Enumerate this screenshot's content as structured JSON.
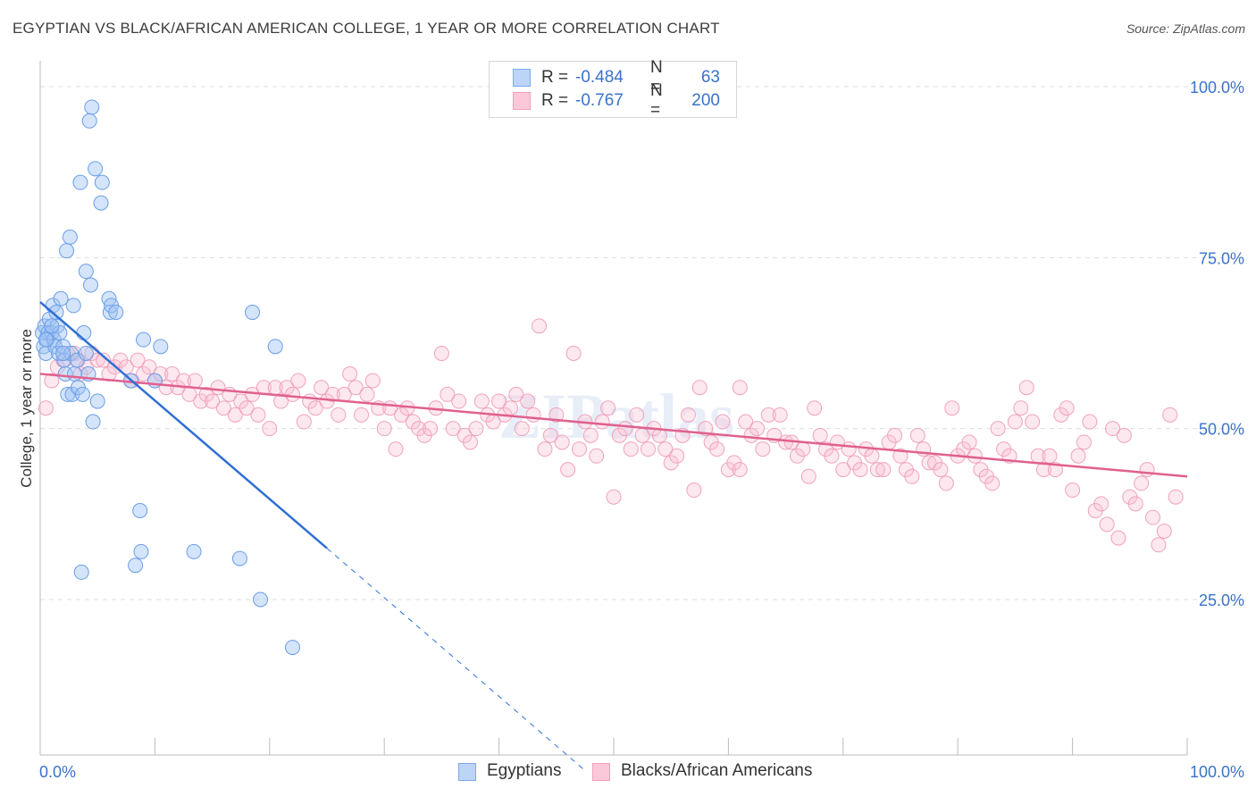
{
  "title": "EGYPTIAN VS BLACK/AFRICAN AMERICAN COLLEGE, 1 YEAR OR MORE CORRELATION CHART",
  "source": "Source: ZipAtlas.com",
  "watermark": "ZIPatlas",
  "legend": {
    "rows": [
      {
        "r_label": "R =",
        "r_value": "-0.484",
        "n_label": "N =",
        "n_value": "63"
      },
      {
        "r_label": "R =",
        "r_value": "-0.767",
        "n_label": "N =",
        "n_value": "200"
      }
    ]
  },
  "bottom_legend": [
    "Egyptians",
    "Blacks/African Americans"
  ],
  "chart_data": {
    "type": "scatter",
    "xlabel": "",
    "ylabel": "College, 1 year or more",
    "xlim": [
      0,
      100
    ],
    "ylim": [
      0,
      105
    ],
    "x_tick_labels": [
      "0.0%",
      "100.0%"
    ],
    "y_tick_labels": [
      {
        "value": 100,
        "label": "100.0%"
      },
      {
        "value": 75,
        "label": "75.0%"
      },
      {
        "value": 50,
        "label": "50.0%"
      },
      {
        "value": 25,
        "label": "25.0%"
      }
    ],
    "grid": true,
    "legend_position": "top-center",
    "colors": {
      "egyptians": "#7aaaf0",
      "blacks": "#f2a0bb",
      "egyptians_line": "#2f6fd4",
      "blacks_line": "#e0608e"
    },
    "series": [
      {
        "name": "Egyptians",
        "points": [
          [
            0.2,
            64
          ],
          [
            0.3,
            62
          ],
          [
            0.4,
            65
          ],
          [
            0.5,
            61
          ],
          [
            0.6,
            63
          ],
          [
            0.7,
            64
          ],
          [
            0.8,
            66
          ],
          [
            1,
            64
          ],
          [
            1.1,
            68
          ],
          [
            1.2,
            63
          ],
          [
            1.3,
            62
          ],
          [
            1.4,
            67
          ],
          [
            1.5,
            65
          ],
          [
            1.6,
            61
          ],
          [
            1.7,
            64
          ],
          [
            1.8,
            69
          ],
          [
            2,
            62
          ],
          [
            2.1,
            60
          ],
          [
            2.2,
            58
          ],
          [
            2.3,
            76
          ],
          [
            2.4,
            55
          ],
          [
            2.6,
            78
          ],
          [
            2.7,
            61
          ],
          [
            2.8,
            55
          ],
          [
            2.9,
            68
          ],
          [
            3,
            58
          ],
          [
            3.2,
            60
          ],
          [
            3.3,
            56
          ],
          [
            3.5,
            86
          ],
          [
            3.6,
            29
          ],
          [
            3.7,
            55
          ],
          [
            3.8,
            64
          ],
          [
            4,
            73
          ],
          [
            4,
            61
          ],
          [
            4.2,
            58
          ],
          [
            4.3,
            95
          ],
          [
            4.4,
            71
          ],
          [
            4.5,
            97
          ],
          [
            4.6,
            51
          ],
          [
            4.8,
            88
          ],
          [
            5,
            54
          ],
          [
            5.3,
            83
          ],
          [
            5.4,
            86
          ],
          [
            6,
            69
          ],
          [
            6.1,
            67
          ],
          [
            6.2,
            68
          ],
          [
            6.6,
            67
          ],
          [
            7.9,
            57
          ],
          [
            8.3,
            30
          ],
          [
            8.7,
            38
          ],
          [
            8.8,
            32
          ],
          [
            9,
            63
          ],
          [
            10,
            57
          ],
          [
            10.5,
            62
          ],
          [
            13.4,
            32
          ],
          [
            17.4,
            31
          ],
          [
            18.5,
            67
          ],
          [
            19.2,
            25
          ],
          [
            20.5,
            62
          ],
          [
            22,
            18
          ],
          [
            0.5,
            63
          ],
          [
            1,
            65
          ],
          [
            2,
            61
          ]
        ]
      },
      {
        "name": "Blacks/African Americans",
        "points": [
          [
            0.5,
            53
          ],
          [
            1,
            57
          ],
          [
            1.5,
            59
          ],
          [
            2,
            60
          ],
          [
            2.4,
            61
          ],
          [
            3,
            61
          ],
          [
            3.3,
            60
          ],
          [
            3.5,
            58
          ],
          [
            4,
            59
          ],
          [
            4.5,
            61
          ],
          [
            5,
            60
          ],
          [
            5.5,
            60
          ],
          [
            6,
            58
          ],
          [
            6.5,
            59
          ],
          [
            7,
            60
          ],
          [
            7.5,
            59
          ],
          [
            8,
            57
          ],
          [
            8.5,
            60
          ],
          [
            9,
            58
          ],
          [
            9.5,
            59
          ],
          [
            10,
            57
          ],
          [
            10.5,
            58
          ],
          [
            11,
            56
          ],
          [
            11.5,
            58
          ],
          [
            12,
            56
          ],
          [
            12.5,
            57
          ],
          [
            13,
            55
          ],
          [
            13.5,
            57
          ],
          [
            14,
            54
          ],
          [
            14.5,
            55
          ],
          [
            15,
            54
          ],
          [
            15.5,
            56
          ],
          [
            16,
            53
          ],
          [
            16.5,
            55
          ],
          [
            17,
            52
          ],
          [
            17.5,
            54
          ],
          [
            18,
            53
          ],
          [
            18.5,
            55
          ],
          [
            19,
            52
          ],
          [
            19.5,
            56
          ],
          [
            20,
            50
          ],
          [
            20.5,
            56
          ],
          [
            21,
            54
          ],
          [
            21.5,
            56
          ],
          [
            22,
            55
          ],
          [
            22.5,
            57
          ],
          [
            23,
            51
          ],
          [
            23.5,
            54
          ],
          [
            24,
            53
          ],
          [
            24.5,
            56
          ],
          [
            25,
            54
          ],
          [
            25.5,
            55
          ],
          [
            26,
            52
          ],
          [
            26.5,
            55
          ],
          [
            27,
            58
          ],
          [
            27.5,
            56
          ],
          [
            28,
            52
          ],
          [
            28.5,
            55
          ],
          [
            29,
            57
          ],
          [
            29.5,
            53
          ],
          [
            30,
            50
          ],
          [
            30.5,
            53
          ],
          [
            31,
            47
          ],
          [
            31.5,
            52
          ],
          [
            32,
            53
          ],
          [
            32.5,
            51
          ],
          [
            33,
            50
          ],
          [
            33.5,
            49
          ],
          [
            34,
            50
          ],
          [
            34.5,
            53
          ],
          [
            35,
            61
          ],
          [
            35.5,
            55
          ],
          [
            36,
            50
          ],
          [
            36.5,
            54
          ],
          [
            37,
            49
          ],
          [
            37.5,
            48
          ],
          [
            38,
            50
          ],
          [
            38.5,
            54
          ],
          [
            39,
            52
          ],
          [
            39.5,
            51
          ],
          [
            40,
            54
          ],
          [
            40.5,
            52
          ],
          [
            41,
            53
          ],
          [
            41.5,
            55
          ],
          [
            42,
            50
          ],
          [
            42.5,
            54
          ],
          [
            43,
            52
          ],
          [
            43.5,
            65
          ],
          [
            44,
            47
          ],
          [
            44.5,
            49
          ],
          [
            45,
            52
          ],
          [
            45.5,
            48
          ],
          [
            46,
            44
          ],
          [
            46.5,
            61
          ],
          [
            47,
            47
          ],
          [
            47.5,
            51
          ],
          [
            48,
            49
          ],
          [
            48.5,
            46
          ],
          [
            49,
            51
          ],
          [
            49.5,
            53
          ],
          [
            50,
            40
          ],
          [
            50.5,
            49
          ],
          [
            51,
            50
          ],
          [
            51.5,
            47
          ],
          [
            52,
            52
          ],
          [
            52.5,
            49
          ],
          [
            53,
            47
          ],
          [
            53.5,
            50
          ],
          [
            54,
            49
          ],
          [
            54.5,
            47
          ],
          [
            55,
            45
          ],
          [
            55.5,
            46
          ],
          [
            56,
            49
          ],
          [
            56.5,
            52
          ],
          [
            57,
            41
          ],
          [
            57.5,
            56
          ],
          [
            58,
            50
          ],
          [
            58.5,
            48
          ],
          [
            59,
            47
          ],
          [
            59.5,
            51
          ],
          [
            60,
            44
          ],
          [
            60.5,
            45
          ],
          [
            61,
            44
          ],
          [
            61.5,
            51
          ],
          [
            62,
            49
          ],
          [
            62.5,
            50
          ],
          [
            63,
            47
          ],
          [
            63.5,
            52
          ],
          [
            64,
            49
          ],
          [
            64.5,
            52
          ],
          [
            65,
            48
          ],
          [
            65.5,
            48
          ],
          [
            66,
            46
          ],
          [
            66.5,
            47
          ],
          [
            67,
            43
          ],
          [
            67.5,
            53
          ],
          [
            68,
            49
          ],
          [
            68.5,
            47
          ],
          [
            69,
            46
          ],
          [
            69.5,
            48
          ],
          [
            70,
            44
          ],
          [
            70.5,
            47
          ],
          [
            71,
            45
          ],
          [
            71.5,
            44
          ],
          [
            72,
            47
          ],
          [
            72.5,
            46
          ],
          [
            73,
            44
          ],
          [
            73.5,
            44
          ],
          [
            74,
            48
          ],
          [
            74.5,
            49
          ],
          [
            75,
            46
          ],
          [
            75.5,
            44
          ],
          [
            76,
            43
          ],
          [
            76.5,
            49
          ],
          [
            77,
            47
          ],
          [
            77.5,
            45
          ],
          [
            78,
            45
          ],
          [
            78.5,
            44
          ],
          [
            79,
            42
          ],
          [
            79.5,
            53
          ],
          [
            80,
            46
          ],
          [
            80.5,
            47
          ],
          [
            81,
            48
          ],
          [
            81.5,
            46
          ],
          [
            82,
            44
          ],
          [
            82.5,
            43
          ],
          [
            83,
            42
          ],
          [
            83.5,
            50
          ],
          [
            84,
            47
          ],
          [
            84.5,
            46
          ],
          [
            85,
            51
          ],
          [
            85.5,
            53
          ],
          [
            86,
            56
          ],
          [
            86.5,
            51
          ],
          [
            87,
            46
          ],
          [
            87.5,
            44
          ],
          [
            88,
            46
          ],
          [
            88.5,
            44
          ],
          [
            89,
            52
          ],
          [
            89.5,
            53
          ],
          [
            90,
            41
          ],
          [
            90.5,
            46
          ],
          [
            91,
            48
          ],
          [
            91.5,
            51
          ],
          [
            92,
            38
          ],
          [
            92.5,
            39
          ],
          [
            93,
            36
          ],
          [
            93.5,
            50
          ],
          [
            94,
            34
          ],
          [
            94.5,
            49
          ],
          [
            95,
            40
          ],
          [
            95.5,
            39
          ],
          [
            96,
            42
          ],
          [
            96.5,
            44
          ],
          [
            97,
            37
          ],
          [
            97.5,
            33
          ],
          [
            98,
            35
          ],
          [
            98.5,
            52
          ],
          [
            99,
            40
          ],
          [
            61,
            56
          ]
        ]
      }
    ],
    "trendlines": [
      {
        "series": "Egyptians",
        "x": [
          0,
          25
        ],
        "y": [
          68.5,
          32.5
        ],
        "dashed_extension_to": [
          47.5,
          0
        ]
      },
      {
        "series": "Blacks/African Americans",
        "x": [
          0,
          100
        ],
        "y": [
          58,
          43
        ]
      }
    ]
  }
}
